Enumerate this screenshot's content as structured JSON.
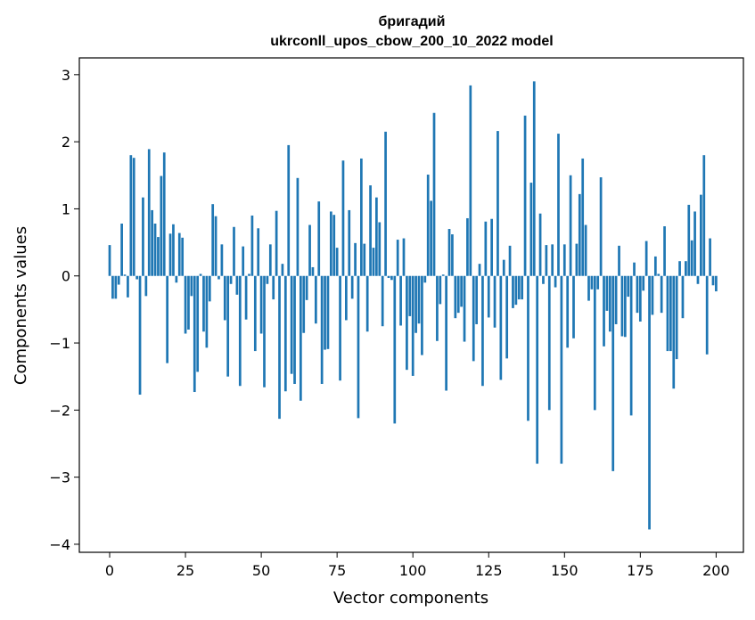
{
  "chart_data": {
    "type": "bar",
    "title_line1": "бригадий",
    "title_line2": "ukrconll_upos_cbow_200_10_2022 model",
    "xlabel": "Vector components",
    "ylabel": "Components values",
    "xlim": [
      -10,
      209
    ],
    "ylim": [
      -4.12,
      3.25
    ],
    "xticks": [
      0,
      25,
      50,
      75,
      100,
      125,
      150,
      175,
      200
    ],
    "yticks": [
      -4,
      -3,
      -2,
      -1,
      0,
      1,
      2,
      3
    ],
    "xtick_labels": [
      "0",
      "25",
      "50",
      "75",
      "100",
      "125",
      "150",
      "175",
      "200"
    ],
    "ytick_labels": [
      "−4",
      "−3",
      "−2",
      "−1",
      "0",
      "1",
      "2",
      "3"
    ],
    "grid": false,
    "bar_color": "#1f77b4",
    "values": [
      0.46,
      -0.34,
      -0.34,
      -0.13,
      0.78,
      0.02,
      -0.32,
      1.8,
      1.76,
      -0.05,
      -1.77,
      1.17,
      -0.3,
      1.89,
      0.98,
      0.78,
      0.58,
      1.49,
      1.84,
      -1.3,
      0.63,
      0.77,
      -0.1,
      0.64,
      0.57,
      -0.86,
      -0.8,
      -0.3,
      -1.73,
      -1.43,
      0.03,
      -0.83,
      -1.07,
      -0.38,
      1.07,
      0.89,
      -0.05,
      0.47,
      -0.66,
      -1.5,
      -0.12,
      0.73,
      -0.28,
      -1.64,
      0.44,
      -0.65,
      0.03,
      0.9,
      -1.12,
      0.71,
      -0.86,
      -1.66,
      -0.12,
      0.47,
      -0.35,
      0.97,
      -2.13,
      0.18,
      -1.72,
      1.95,
      -1.46,
      -1.61,
      1.46,
      -1.86,
      -0.85,
      -0.36,
      0.76,
      0.13,
      -0.71,
      1.11,
      -1.61,
      -1.1,
      -1.09,
      0.96,
      0.91,
      0.42,
      -1.56,
      1.72,
      -0.66,
      0.98,
      -0.34,
      0.49,
      -2.12,
      1.75,
      0.48,
      -0.83,
      1.35,
      0.42,
      1.17,
      0.8,
      -0.75,
      2.15,
      -0.03,
      -0.06,
      -2.2,
      0.54,
      -0.74,
      0.56,
      -1.4,
      -0.6,
      -1.49,
      -0.85,
      -0.71,
      -1.18,
      -0.1,
      1.51,
      1.12,
      2.43,
      -0.97,
      -0.42,
      0.02,
      -1.71,
      0.7,
      0.62,
      -0.63,
      -0.55,
      -0.46,
      -0.98,
      0.86,
      2.84,
      -1.27,
      -0.72,
      0.18,
      -1.64,
      0.81,
      -0.62,
      0.85,
      -0.77,
      2.16,
      -1.55,
      0.24,
      -1.23,
      0.45,
      -0.48,
      -0.43,
      -0.35,
      -0.35,
      2.39,
      -2.16,
      1.39,
      2.9,
      -2.8,
      0.93,
      -0.12,
      0.46,
      -2.0,
      0.47,
      -0.17,
      2.12,
      -2.8,
      0.47,
      -1.07,
      1.5,
      -0.93,
      0.48,
      1.22,
      1.75,
      0.76,
      -0.37,
      -0.2,
      -2.0,
      -0.2,
      1.47,
      -1.05,
      -0.52,
      -0.83,
      -2.91,
      -0.72,
      0.45,
      -0.9,
      -0.91,
      -0.31,
      -2.08,
      0.2,
      -0.55,
      -0.68,
      -0.22,
      0.52,
      -3.78,
      -0.58,
      0.29,
      0.03,
      -0.55,
      0.74,
      -1.12,
      -1.12,
      -1.68,
      -1.24,
      0.22,
      -0.63,
      0.22,
      1.06,
      0.53,
      0.96,
      -0.12,
      1.21,
      1.8,
      -1.17,
      0.56,
      -0.14,
      -0.23
    ]
  }
}
